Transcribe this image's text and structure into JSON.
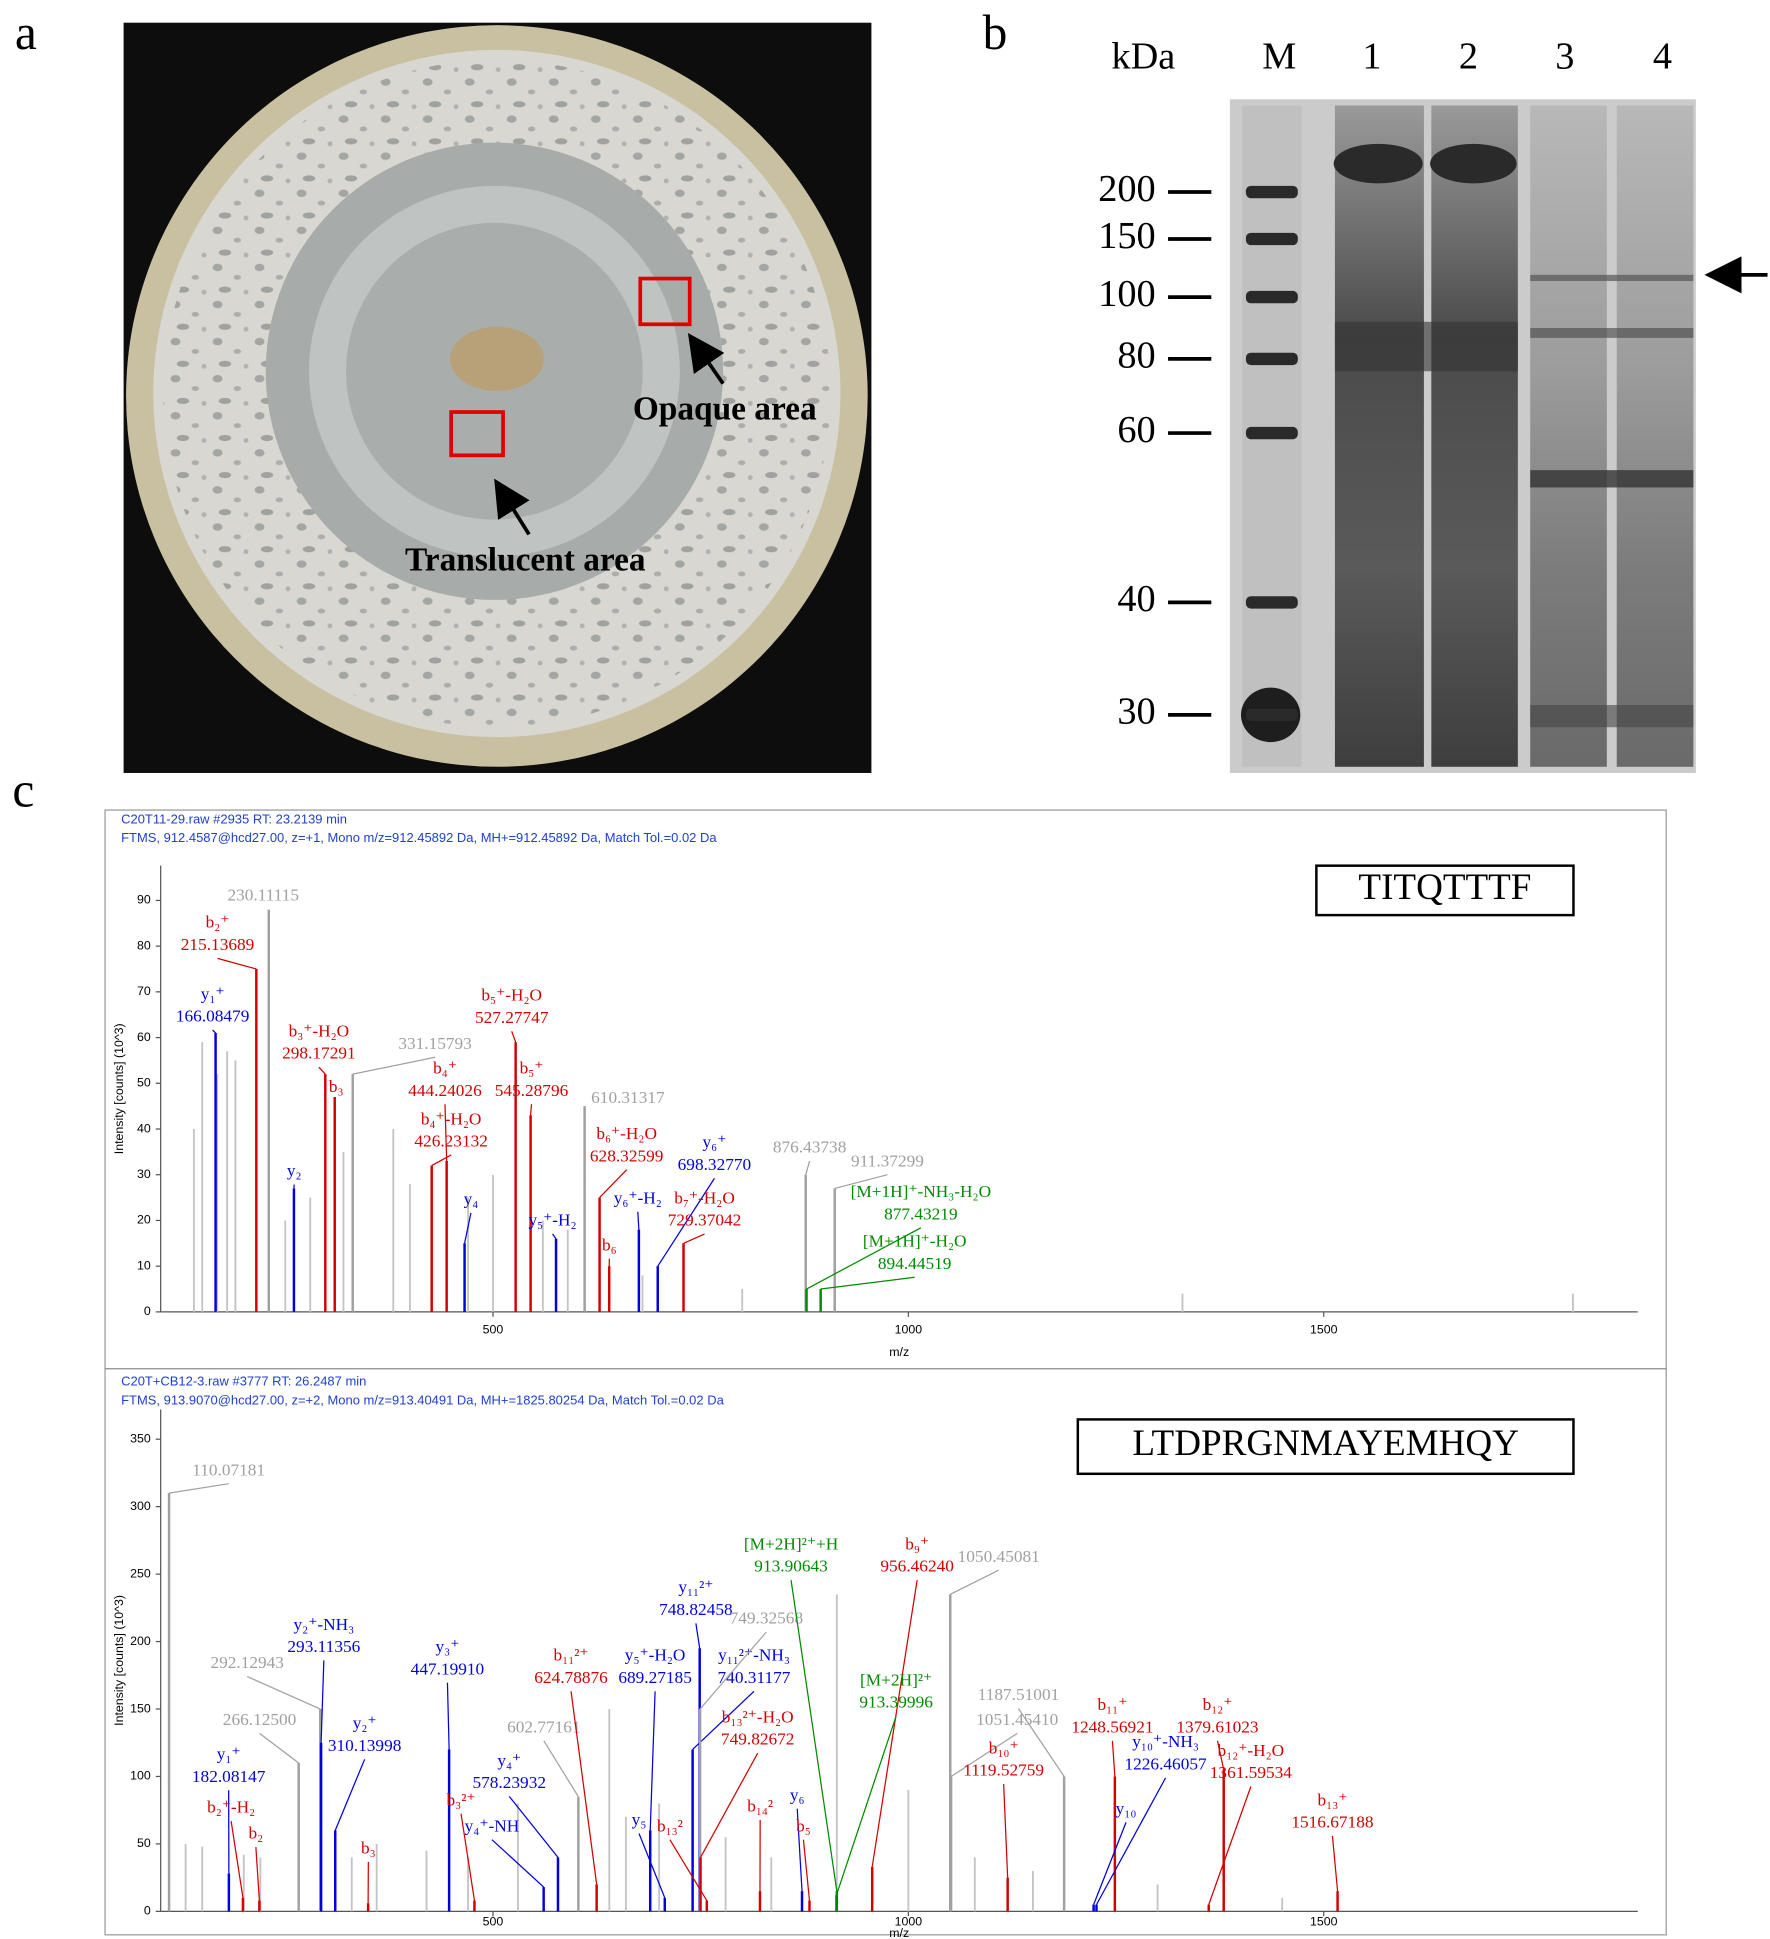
{
  "panels": {
    "a": {
      "letter": "a",
      "labels": [
        "Opaque area",
        "Translucent area"
      ]
    },
    "b": {
      "letter": "b",
      "unit": "kDa",
      "lanes": [
        "M",
        "1",
        "2",
        "3",
        "4"
      ],
      "markers": [
        200,
        150,
        100,
        80,
        60,
        40,
        30
      ]
    },
    "c": {
      "letter": "c"
    }
  },
  "spectra": [
    {
      "file": "C20T11-29.raw  #2935  RT: 23.2139 min",
      "scan": "FTMS, 912.4587@hcd27.00, z=+1, Mono m/z=912.45892 Da, MH+=912.45892 Da, Match Tol.=0.02 Da",
      "peptide": "TITQTTTF",
      "y_label": "Intensity [counts] (10^3)",
      "x_label": "m/z",
      "xlim": [
        100,
        1878
      ],
      "ylim": [
        0,
        97.6
      ],
      "xticks": [
        500,
        1000,
        1500
      ],
      "yticks": [
        0,
        10,
        20,
        30,
        40,
        50,
        60,
        70,
        80,
        90
      ],
      "peaks": [
        {
          "mz": 230.11115,
          "intensity": 88,
          "color": "#a0a0a0"
        },
        {
          "ion": "b₂⁺",
          "mz": 215.13689,
          "intensity": 75,
          "color": "#d40000"
        },
        {
          "ion": "y₁⁺",
          "mz": 166.08479,
          "intensity": 61,
          "color": "#0000e0"
        },
        {
          "ion": "b₃⁺-H₂O",
          "mz": 298.17291,
          "intensity": 52,
          "color": "#d40000"
        },
        {
          "ion": "b₃",
          "x": 309.5,
          "intensity": 47,
          "color": "#d40000"
        },
        {
          "mz": 331.15793,
          "intensity": 52,
          "color": "#a0a0a0"
        },
        {
          "ion": "b₄⁺",
          "mz": 444.24026,
          "intensity": 33,
          "color": "#d40000"
        },
        {
          "ion": "b₄⁺-H₂O",
          "mz": 426.23132,
          "intensity": 32,
          "color": "#d40000"
        },
        {
          "ion": "y₄",
          "x": 465.8,
          "intensity": 15,
          "color": "#0000e0"
        },
        {
          "ion": "b₅⁺-H₂O",
          "mz": 527.27747,
          "intensity": 59,
          "color": "#d40000"
        },
        {
          "ion": "b₅⁺",
          "mz": 545.28796,
          "intensity": 43,
          "color": "#d40000"
        },
        {
          "mz": 610.31317,
          "intensity": 45,
          "color": "#a0a0a0"
        },
        {
          "ion": "y₂",
          "x": 260.4,
          "intensity": 27,
          "color": "#0000e0"
        },
        {
          "ion": "y₅⁺-H₂",
          "x": 575.9,
          "intensity": 16,
          "color": "#0000e0"
        },
        {
          "ion": "b₆⁺-H₂O",
          "mz": 628.32599,
          "intensity": 25,
          "color": "#d40000"
        },
        {
          "ion": "b₆",
          "x": 639.9,
          "intensity": 10,
          "color": "#d40000"
        },
        {
          "ion": "y₆⁺-H₂",
          "x": 675.6,
          "intensity": 18,
          "color": "#0000e0"
        },
        {
          "ion": "y₆⁺",
          "mz": {
            "value": 698.3277,
            "label": "698.32770"
          },
          "intensity": 10,
          "color": "#0000e0"
        },
        {
          "ion": "b₇⁺-H₂O",
          "mz": 729.37042,
          "intensity": 15,
          "color": "#d40000"
        },
        {
          "mz": 876.43738,
          "intensity": 30,
          "color": "#a0a0a0"
        },
        {
          "mz": 911.37299,
          "intensity": 27,
          "color": "#a0a0a0"
        },
        {
          "ion": "[M+1H]⁺-NH₃-H₂O",
          "mz": 877.43219,
          "intensity": 5,
          "color": "#008a00"
        },
        {
          "ion": "[M+1H]⁺-H₂O",
          "mz": 894.44519,
          "intensity": 5,
          "color": "#008a00"
        }
      ],
      "other_peaks": [
        [
          140,
          40
        ],
        [
          150,
          59
        ],
        [
          168,
          52
        ],
        [
          180,
          57
        ],
        [
          190,
          55
        ],
        [
          250,
          20
        ],
        [
          280,
          25
        ],
        [
          320,
          35
        ],
        [
          380,
          40
        ],
        [
          400,
          28
        ],
        [
          470,
          25
        ],
        [
          500,
          30
        ],
        [
          560,
          20
        ],
        [
          590,
          18
        ],
        [
          680,
          8
        ],
        [
          800,
          5
        ],
        [
          1330,
          4
        ],
        [
          1800,
          4
        ]
      ]
    },
    {
      "file": "C20T+CB12-3.raw  #3777  RT: 26.2487 min",
      "scan": "FTMS, 913.9070@hcd27.00, z=+2, Mono m/z=913.40491 Da, MH+=1825.80254 Da, Match Tol.=0.02 Da",
      "peptide": "LTDPRGNMAYEMHQY",
      "y_label": "Intensity [counts] (10^3)",
      "x_label": "m/z",
      "xlim": [
        100,
        1878
      ],
      "ylim": [
        0,
        372
      ],
      "xticks": [
        500,
        1000,
        1500
      ],
      "yticks": [
        0,
        50,
        100,
        150,
        200,
        250,
        300,
        350
      ],
      "peaks": [
        {
          "mz": 110.07181,
          "intensity": 310,
          "color": "#a0a0a0"
        },
        {
          "ion": "y₁⁺",
          "mz": 182.08147,
          "intensity": 28,
          "color": "#0000e0"
        },
        {
          "ion": "b₂⁺-H₂",
          "x": 199,
          "intensity": 10,
          "color": "#d40000"
        },
        {
          "ion": "b₂",
          "x": 218.8,
          "intensity": 8,
          "color": "#d40000"
        },
        {
          "mz": 292.12943,
          "intensity": 150,
          "color": "#a0a0a0"
        },
        {
          "mz": {
            "value": 266.125,
            "label": "266.12500"
          },
          "intensity": 110,
          "color": "#a0a0a0"
        },
        {
          "ion": "y₂⁺-NH₃",
          "mz": 293.11356,
          "intensity": 125,
          "color": "#0000e0"
        },
        {
          "ion": "y₂⁺",
          "mz": 310.13998,
          "intensity": 60,
          "color": "#0000e0"
        },
        {
          "ion": "b₃",
          "x": 349.7,
          "intensity": 6,
          "color": "#d40000"
        },
        {
          "ion": "y₃⁺",
          "mz": {
            "value": 447.1991,
            "label": "447.19910"
          },
          "intensity": 120,
          "color": "#0000e0"
        },
        {
          "ion": "b₃²⁺",
          "x": 477.7,
          "intensity": 8,
          "color": "#d40000"
        },
        {
          "ion": "y₄⁺-NH",
          "x": 561,
          "intensity": 18,
          "color": "#0000e0"
        },
        {
          "ion": "y₄⁺",
          "mz": 578.23932,
          "intensity": 40,
          "color": "#0000e0"
        },
        {
          "mz": 602.77161,
          "intensity": 85,
          "color": "#a0a0a0"
        },
        {
          "ion": "b₁₁²⁺",
          "mz": 624.78876,
          "intensity": 20,
          "color": "#d40000"
        },
        {
          "ion": "y₅⁺-H₂O",
          "mz": 689.27185,
          "intensity": 60,
          "color": "#0000e0"
        },
        {
          "ion": "y₅",
          "x": 706.8,
          "intensity": 10,
          "color": "#0000e0"
        },
        {
          "ion": "y₁₁²⁺",
          "mz": 748.82458,
          "intensity": 195,
          "color": "#0000e0"
        },
        {
          "ion": "y₁₁²⁺-NH₃",
          "mz": 740.31177,
          "intensity": 120,
          "color": "#0000e0"
        },
        {
          "mz": 749.32568,
          "intensity": 150,
          "color": "#a0a0a0"
        },
        {
          "ion": "b₁₃²⁺-H₂O",
          "mz": 749.82672,
          "intensity": 40,
          "color": "#d40000"
        },
        {
          "ion": "b₁₃²",
          "x": 757.4,
          "intensity": 8,
          "color": "#d40000"
        },
        {
          "ion": "b₁₄²",
          "x": 821.4,
          "intensity": 15,
          "color": "#d40000"
        },
        {
          "ion": "y₆",
          "x": 872,
          "intensity": 15,
          "color": "#0000e0"
        },
        {
          "ion": "b₅",
          "x": 881,
          "intensity": 8,
          "color": "#d40000"
        },
        {
          "ion": "[M+2H]²⁺+H",
          "mz": 913.90643,
          "intensity": 15,
          "color": "#008a00"
        },
        {
          "ion": "b₉⁺",
          "mz": {
            "value": 956.4624,
            "label": "956.46240"
          },
          "intensity": 33,
          "color": "#d40000"
        },
        {
          "ion": "[M+2H]²⁺",
          "mz": 913.39996,
          "intensity": 12,
          "color": "#008a00"
        },
        {
          "mz": 1050.45081,
          "intensity": 235,
          "color": "#a0a0a0"
        },
        {
          "mz": 1187.51001,
          "intensity": 100,
          "color": "#a0a0a0"
        },
        {
          "mz": {
            "value": 1051.4541,
            "label": "1051.45410"
          },
          "intensity": 100,
          "color": "#a0a0a0"
        },
        {
          "ion": "b₁₀⁺",
          "mz": 1119.52759,
          "intensity": 25,
          "color": "#d40000"
        },
        {
          "ion": "b₁₁⁺",
          "mz": 1248.56921,
          "intensity": 100,
          "color": "#d40000"
        },
        {
          "ion": "y₁₀⁺-NH₃",
          "mz": 1226.46057,
          "intensity": 5,
          "color": "#0000e0"
        },
        {
          "ion": "y₁₀",
          "x": 1223,
          "intensity": 5,
          "color": "#0000e0"
        },
        {
          "ion": "b₁₂⁺",
          "mz": 1379.61023,
          "intensity": 105,
          "color": "#d40000"
        },
        {
          "ion": "b₁₂⁺-H₂O",
          "mz": 1361.59534,
          "intensity": 5,
          "color": "#d40000"
        },
        {
          "ion": "b₁₃⁺",
          "mz": 1516.67188,
          "intensity": 15,
          "color": "#d40000"
        }
      ],
      "other_peaks": [
        [
          130,
          50
        ],
        [
          150,
          48
        ],
        [
          200,
          42
        ],
        [
          220,
          40
        ],
        [
          330,
          40
        ],
        [
          360,
          50
        ],
        [
          420,
          45
        ],
        [
          470,
          40
        ],
        [
          530,
          80
        ],
        [
          640,
          150
        ],
        [
          660,
          70
        ],
        [
          700,
          80
        ],
        [
          780,
          55
        ],
        [
          835,
          40
        ],
        [
          913.9,
          235
        ],
        [
          1000,
          90
        ],
        [
          1080,
          40
        ],
        [
          1150,
          30
        ],
        [
          1300,
          20
        ],
        [
          1450,
          10
        ]
      ]
    }
  ]
}
